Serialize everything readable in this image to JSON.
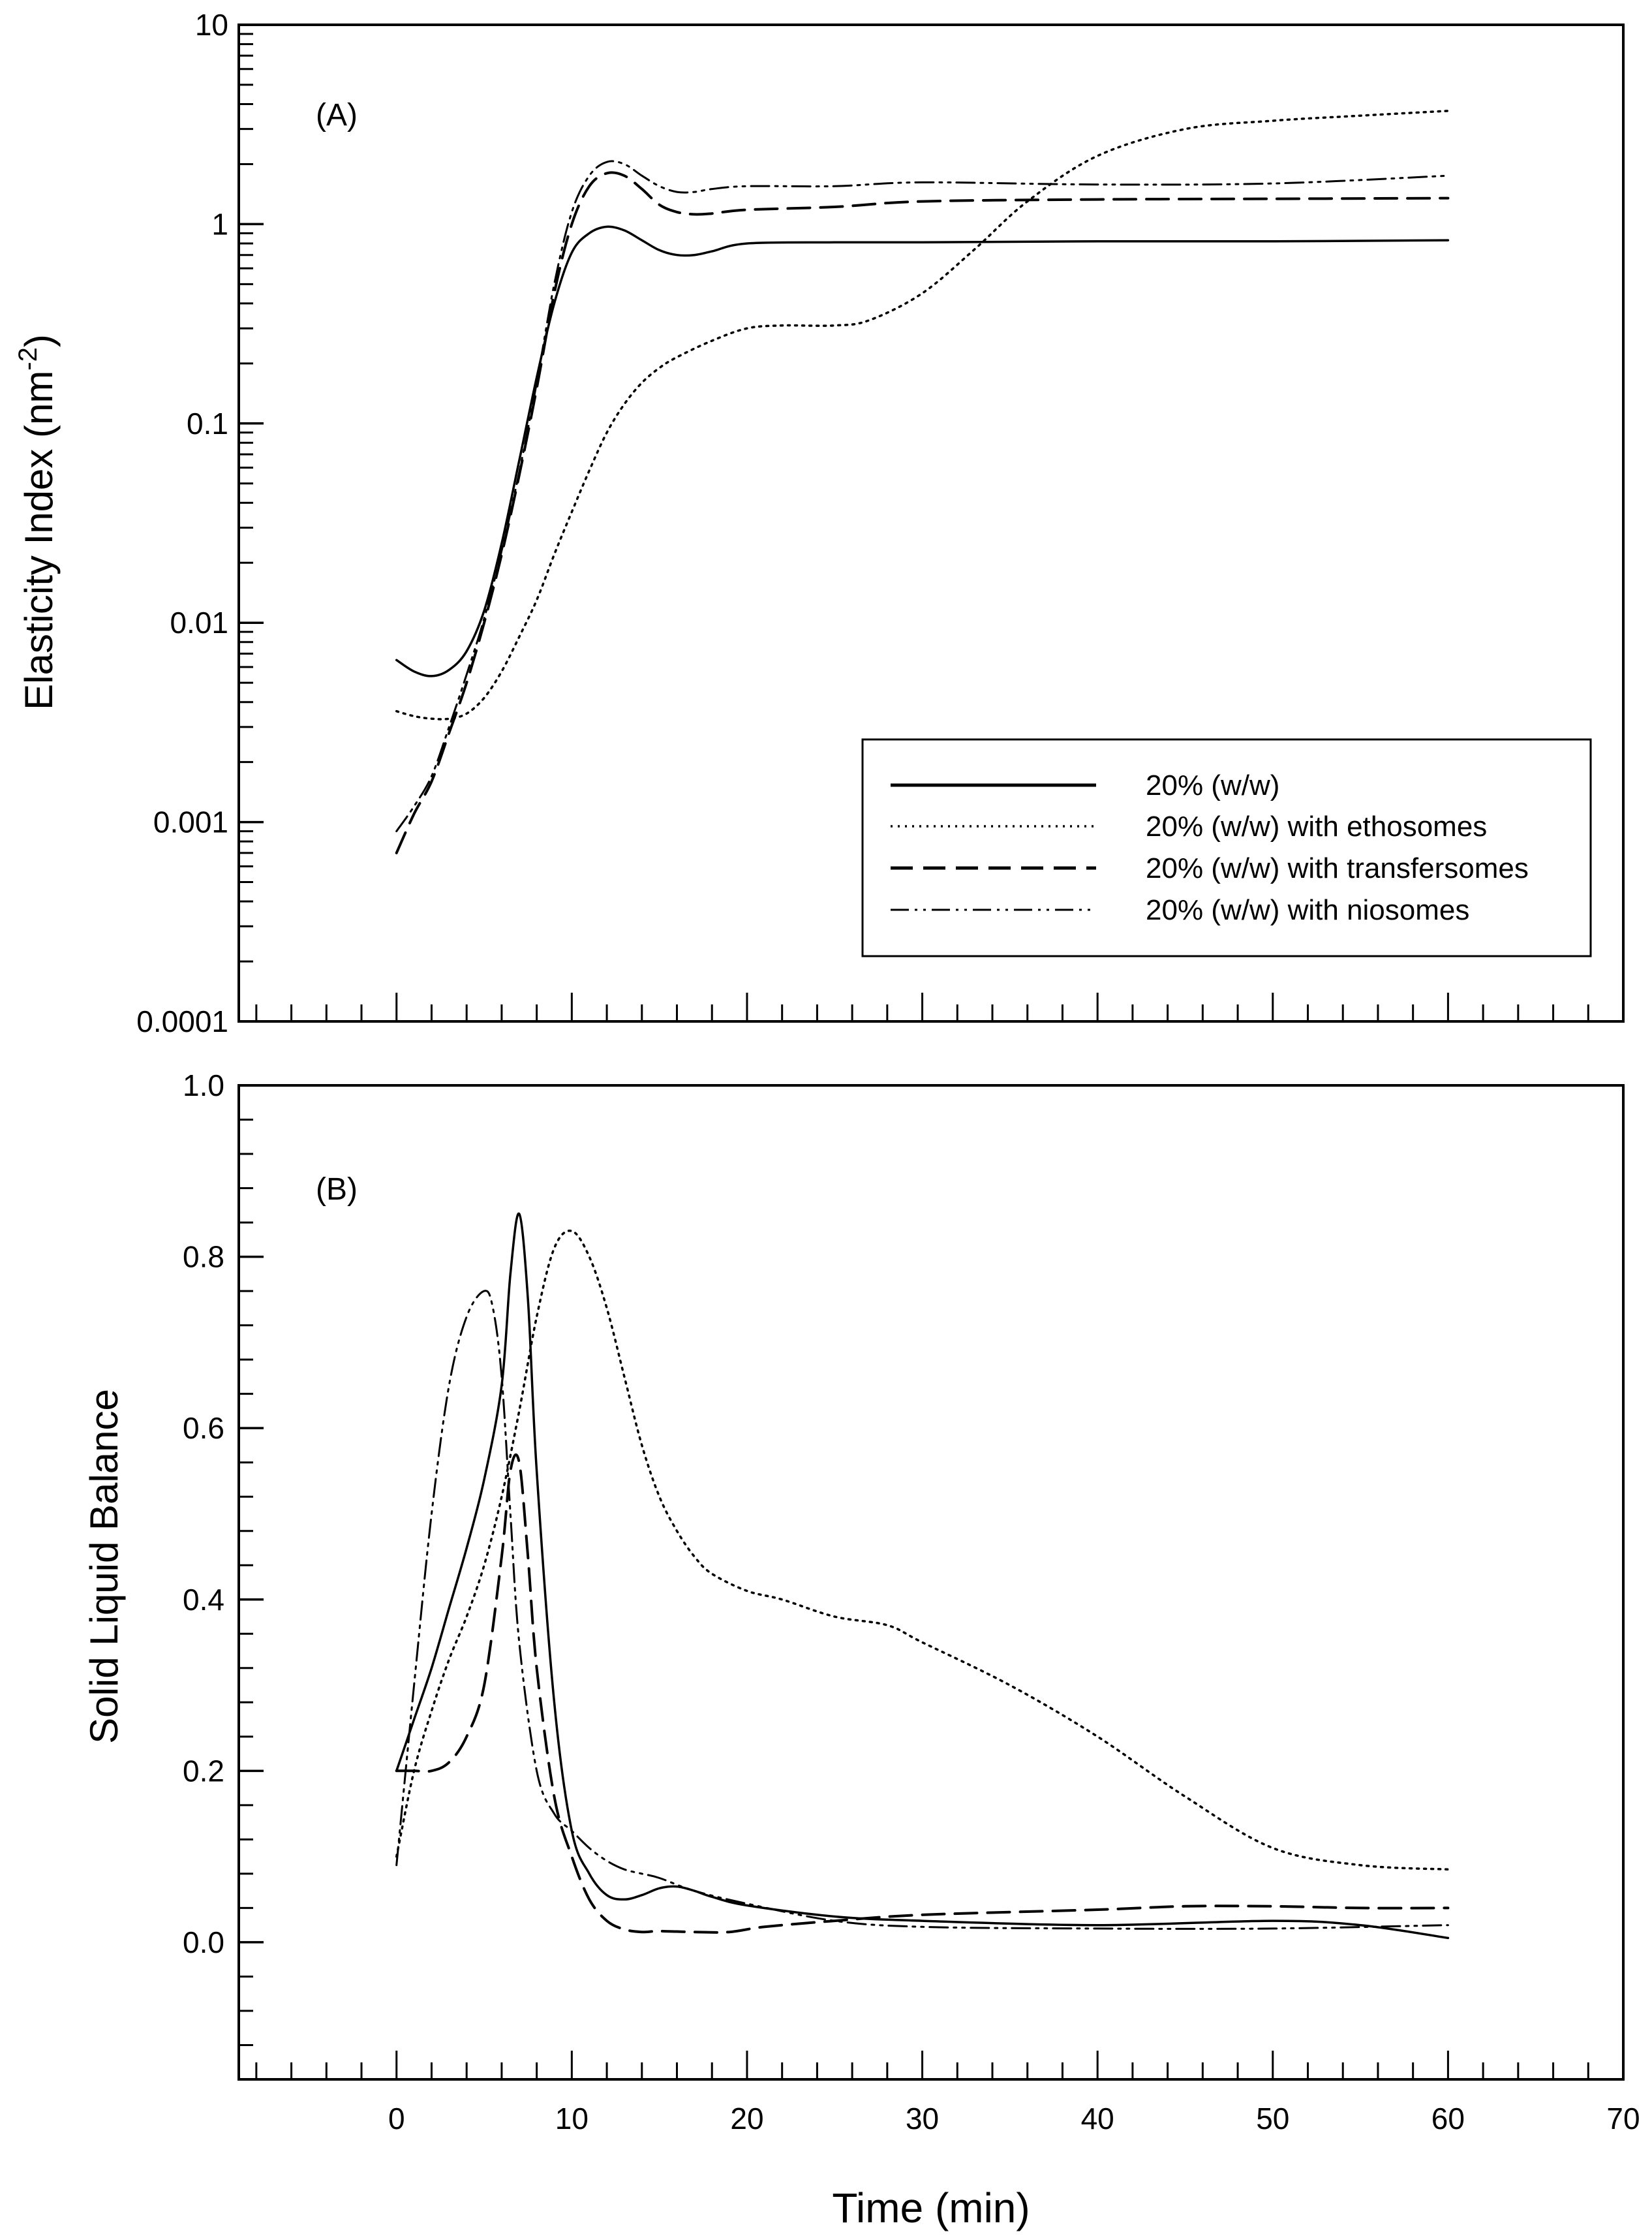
{
  "chart_data": [
    {
      "type": "line",
      "panel_label": "(A)",
      "ylabel": "Elasticity Index (nm",
      "ylabel_sup": "-2",
      "ylabel_close": ")",
      "yscale": "log",
      "ylim": [
        0.0001,
        10
      ],
      "xlim": [
        -9,
        70
      ],
      "y_ticks": [
        {
          "value": 0.0001,
          "label": "0.0001"
        },
        {
          "value": 0.001,
          "label": "0.001"
        },
        {
          "value": 0.01,
          "label": "0.01"
        },
        {
          "value": 0.1,
          "label": "0.1"
        },
        {
          "value": 1,
          "label": "1"
        },
        {
          "value": 10,
          "label": "10"
        }
      ],
      "legend_position": "lower-right",
      "series": [
        {
          "name": "20% (w/w)",
          "style": "solid",
          "x": [
            0,
            1,
            2,
            3,
            4,
            5,
            6,
            7,
            8,
            9,
            10,
            11,
            12,
            13,
            14,
            15,
            16,
            17,
            18,
            20,
            25,
            30,
            40,
            50,
            60
          ],
          "y": [
            0.0065,
            0.0057,
            0.0054,
            0.0058,
            0.0072,
            0.0115,
            0.025,
            0.065,
            0.17,
            0.4,
            0.72,
            0.9,
            0.97,
            0.93,
            0.83,
            0.74,
            0.7,
            0.7,
            0.73,
            0.8,
            0.81,
            0.81,
            0.82,
            0.82,
            0.83
          ]
        },
        {
          "name": "20% (w/w) with ethosomes",
          "style": "dotted",
          "x": [
            0,
            1,
            2,
            3,
            4,
            5,
            6,
            7,
            8,
            9,
            10,
            11,
            12,
            13,
            14,
            15,
            16,
            18,
            20,
            22,
            25,
            27,
            30,
            33,
            36,
            40,
            45,
            50,
            55,
            60
          ],
          "y": [
            0.0036,
            0.0034,
            0.0033,
            0.0033,
            0.0035,
            0.0042,
            0.0057,
            0.0085,
            0.013,
            0.022,
            0.036,
            0.058,
            0.09,
            0.125,
            0.16,
            0.19,
            0.215,
            0.26,
            0.3,
            0.31,
            0.31,
            0.33,
            0.45,
            0.75,
            1.3,
            2.2,
            3.0,
            3.3,
            3.5,
            3.7
          ]
        },
        {
          "name": "20% (w/w) with transfersomes",
          "style": "dashed",
          "x": [
            0,
            1,
            2,
            3,
            4,
            5,
            6,
            7,
            8,
            9,
            10,
            11,
            12,
            13,
            14,
            15,
            16,
            17,
            18,
            20,
            25,
            30,
            40,
            50,
            60
          ],
          "y": [
            0.0007,
            0.0011,
            0.0016,
            0.0028,
            0.005,
            0.01,
            0.022,
            0.055,
            0.15,
            0.45,
            1.0,
            1.55,
            1.8,
            1.75,
            1.5,
            1.25,
            1.15,
            1.12,
            1.13,
            1.18,
            1.22,
            1.3,
            1.33,
            1.34,
            1.35
          ]
        },
        {
          "name": "20% (w/w) with niosomes",
          "style": "dashdotdot",
          "x": [
            0,
            1,
            2,
            3,
            4,
            5,
            6,
            7,
            8,
            9,
            10,
            11,
            12,
            13,
            14,
            15,
            16,
            17,
            18,
            20,
            25,
            30,
            40,
            50,
            60
          ],
          "y": [
            0.0009,
            0.0012,
            0.0017,
            0.003,
            0.0055,
            0.0105,
            0.023,
            0.057,
            0.16,
            0.5,
            1.15,
            1.75,
            2.05,
            2.0,
            1.75,
            1.55,
            1.45,
            1.45,
            1.5,
            1.55,
            1.55,
            1.62,
            1.58,
            1.6,
            1.75
          ]
        }
      ]
    },
    {
      "type": "line",
      "panel_label": "(B)",
      "xlabel": "Time (min)",
      "ylabel": "Solid Liquid Balance",
      "ylim": [
        -0.16,
        1.0
      ],
      "xlim": [
        -9,
        70
      ],
      "x_ticks": [
        0,
        10,
        20,
        30,
        40,
        50,
        60,
        70
      ],
      "y_ticks": [
        {
          "value": 0.0,
          "label": "0.0"
        },
        {
          "value": 0.2,
          "label": "0.2"
        },
        {
          "value": 0.4,
          "label": "0.4"
        },
        {
          "value": 0.6,
          "label": "0.6"
        },
        {
          "value": 0.8,
          "label": "0.8"
        },
        {
          "value": 1.0,
          "label": "1.0"
        }
      ],
      "series": [
        {
          "name": "20% (w/w)",
          "style": "solid",
          "x": [
            0,
            1,
            2,
            3,
            4,
            5,
            6,
            6.5,
            7,
            7.5,
            8,
            9,
            10,
            11,
            12,
            13,
            14,
            15,
            16,
            17,
            18,
            20,
            25,
            30,
            40,
            50,
            55,
            60
          ],
          "y": [
            0.2,
            0.26,
            0.32,
            0.39,
            0.46,
            0.54,
            0.65,
            0.78,
            0.85,
            0.75,
            0.55,
            0.28,
            0.13,
            0.08,
            0.055,
            0.05,
            0.055,
            0.063,
            0.065,
            0.06,
            0.053,
            0.043,
            0.03,
            0.025,
            0.02,
            0.025,
            0.02,
            0.005
          ]
        },
        {
          "name": "20% (w/w) with ethosomes",
          "style": "dotted",
          "x": [
            0,
            1,
            2,
            3,
            4,
            5,
            6,
            7,
            8,
            9,
            10,
            11,
            12,
            13,
            14,
            15,
            16,
            17,
            18,
            20,
            22,
            25,
            28,
            30,
            35,
            40,
            45,
            50,
            55,
            60
          ],
          "y": [
            0.1,
            0.2,
            0.27,
            0.33,
            0.38,
            0.44,
            0.52,
            0.62,
            0.73,
            0.81,
            0.83,
            0.8,
            0.74,
            0.66,
            0.58,
            0.52,
            0.48,
            0.45,
            0.43,
            0.41,
            0.4,
            0.38,
            0.37,
            0.35,
            0.3,
            0.24,
            0.17,
            0.11,
            0.09,
            0.085
          ]
        },
        {
          "name": "20% (w/w) with transfersomes",
          "style": "dashed",
          "x": [
            0,
            1,
            2,
            3,
            4,
            5,
            6,
            6.5,
            7,
            7.5,
            8,
            9,
            10,
            11,
            12,
            13,
            14,
            15,
            17,
            19,
            21,
            25,
            30,
            40,
            45,
            50,
            55,
            60
          ],
          "y": [
            0.2,
            0.2,
            0.2,
            0.21,
            0.24,
            0.3,
            0.45,
            0.55,
            0.56,
            0.45,
            0.32,
            0.17,
            0.1,
            0.05,
            0.025,
            0.015,
            0.012,
            0.013,
            0.012,
            0.012,
            0.018,
            0.025,
            0.032,
            0.038,
            0.042,
            0.042,
            0.04,
            0.04
          ]
        },
        {
          "name": "20% (w/w) with niosomes",
          "style": "dashdotdot",
          "x": [
            0,
            1,
            2,
            3,
            4,
            5,
            5.5,
            6,
            6.5,
            7,
            8,
            9,
            10,
            11,
            12,
            13,
            14,
            15,
            17,
            20,
            25,
            30,
            40,
            50,
            60
          ],
          "y": [
            0.09,
            0.3,
            0.5,
            0.65,
            0.73,
            0.76,
            0.74,
            0.66,
            0.5,
            0.35,
            0.2,
            0.15,
            0.13,
            0.11,
            0.095,
            0.085,
            0.08,
            0.075,
            0.06,
            0.045,
            0.025,
            0.018,
            0.016,
            0.016,
            0.02
          ]
        }
      ]
    }
  ]
}
